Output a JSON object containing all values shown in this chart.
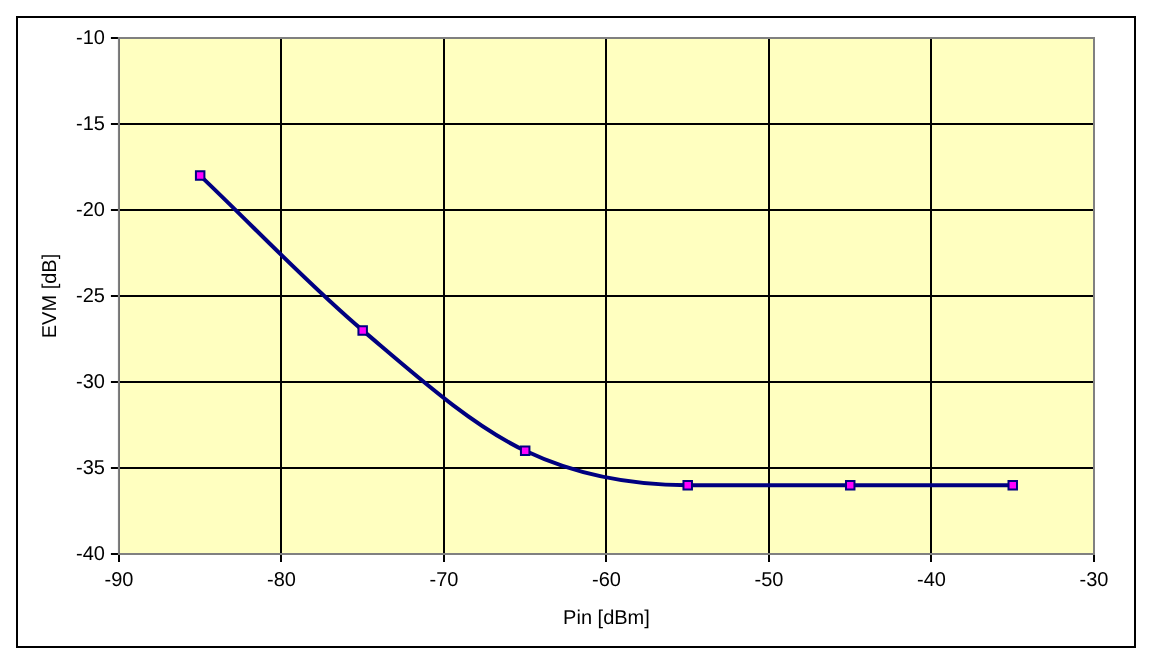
{
  "chart_data": {
    "type": "line",
    "xlabel": "Pin [dBm]",
    "ylabel": "EVM [dB]",
    "x": [
      -85,
      -75,
      -65,
      -55,
      -45,
      -35
    ],
    "series": [
      {
        "color": "#000080",
        "values": [
          -18,
          -27,
          -34,
          -36,
          -36,
          -36
        ]
      }
    ],
    "xlim": [
      -90,
      -30
    ],
    "xticks": [
      -90,
      -80,
      -70,
      -60,
      -50,
      -40,
      -30
    ],
    "ylim": [
      -40,
      -10
    ],
    "yticks": [
      -40,
      -35,
      -30,
      -25,
      -20,
      -15,
      -10
    ],
    "grid": true,
    "legend": false,
    "marker": "square",
    "line_style": "solid"
  }
}
